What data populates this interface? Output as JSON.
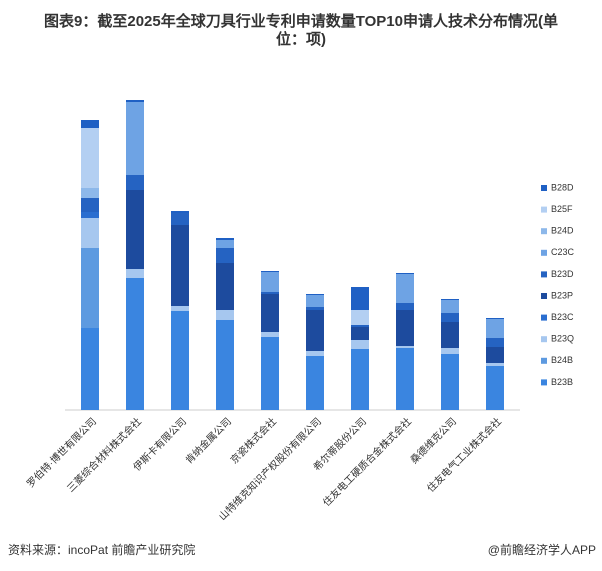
{
  "chart_data": {
    "type": "stacked-bar",
    "title": "图表9：截至2025年全球刀具行业专利申请数量TOP10申请人技术分布情况(单位：项)",
    "categories": [
      "罗伯特·博世有限公司",
      "三菱综合材料株式会社",
      "伊斯卡有限公司",
      "肯纳金属公司",
      "京瓷株式会社",
      "山特维克知识产权股份有限公司",
      "希尔蒂股份公司",
      "住友电工硬质合金株式会社",
      "桑德维克公司",
      "住友电气工业株式会社"
    ],
    "series": [
      {
        "name": "B23B",
        "color": "#3a85e0",
        "values": [
          82,
          132,
          99,
          90,
          73,
          54,
          61,
          62,
          56,
          44
        ]
      },
      {
        "name": "B24B",
        "color": "#5d9ae0",
        "values": [
          80,
          0,
          0,
          0,
          0,
          0,
          0,
          0,
          0,
          0
        ]
      },
      {
        "name": "B23Q",
        "color": "#a6c7ef",
        "values": [
          30,
          9,
          5,
          10,
          5,
          5,
          9,
          2,
          6,
          3
        ]
      },
      {
        "name": "B23C",
        "color": "#2a6ed0",
        "values": [
          6,
          0,
          0,
          0,
          0,
          0,
          0,
          0,
          0,
          0
        ]
      },
      {
        "name": "B23P",
        "color": "#1d4b9e",
        "values": [
          0,
          79,
          81,
          47,
          38,
          41,
          13,
          36,
          26,
          16
        ]
      },
      {
        "name": "B23D",
        "color": "#2563c2",
        "values": [
          14,
          15,
          12,
          15,
          2,
          3,
          2,
          7,
          9,
          9
        ]
      },
      {
        "name": "C23C",
        "color": "#6ea3e4",
        "values": [
          0,
          73,
          0,
          8,
          20,
          12,
          0,
          29,
          13,
          19
        ]
      },
      {
        "name": "B24D",
        "color": "#8db8ea",
        "values": [
          10,
          0,
          0,
          0,
          0,
          0,
          0,
          0,
          0,
          0
        ]
      },
      {
        "name": "B25F",
        "color": "#b3cff2",
        "values": [
          60,
          0,
          0,
          0,
          0,
          0,
          15,
          0,
          0,
          0
        ]
      },
      {
        "name": "B28D",
        "color": "#1f60c4",
        "values": [
          8,
          2,
          2,
          2,
          1,
          1,
          23,
          1,
          1,
          1
        ]
      }
    ],
    "source": "资料来源：incoPat 前瞻产业研究院",
    "brand": "@前瞻经济学人APP"
  }
}
